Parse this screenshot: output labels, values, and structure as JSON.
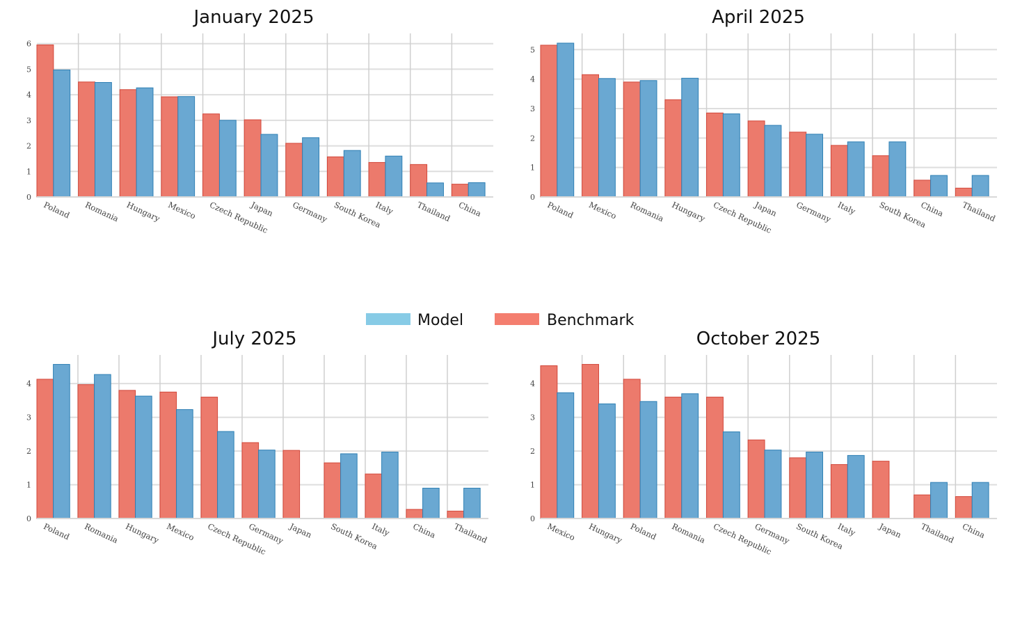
{
  "legend": {
    "items": [
      {
        "label": "Model",
        "color": "#87cbe6"
      },
      {
        "label": "Benchmark",
        "color": "#f47e6f"
      }
    ]
  },
  "colors": {
    "model_fill": "#6aa8d2",
    "model_stroke": "#2e7fb4",
    "bench_fill": "#ec7a6c",
    "bench_stroke": "#d2473a"
  },
  "chart_data": [
    {
      "type": "bar",
      "title": "January 2025",
      "categories": [
        "Poland",
        "Romania",
        "Hungary",
        "Mexico",
        "Czech Republic",
        "Japan",
        "Germany",
        "South Korea",
        "Italy",
        "Thailand",
        "China"
      ],
      "series": [
        {
          "name": "Benchmark",
          "values": [
            5.95,
            4.5,
            4.2,
            3.92,
            3.25,
            3.02,
            2.1,
            1.57,
            1.35,
            1.27,
            0.5
          ]
        },
        {
          "name": "Model",
          "values": [
            4.97,
            4.48,
            4.27,
            3.93,
            3.0,
            2.45,
            2.32,
            1.82,
            1.6,
            0.55,
            0.56
          ]
        }
      ],
      "yticks": [
        0,
        1,
        2,
        3,
        4,
        5,
        6
      ],
      "ylim": [
        0,
        6.4
      ]
    },
    {
      "type": "bar",
      "title": "April 2025",
      "categories": [
        "Poland",
        "Mexico",
        "Romania",
        "Hungary",
        "Czech Republic",
        "Japan",
        "Germany",
        "Italy",
        "South Korea",
        "China",
        "Thailand"
      ],
      "series": [
        {
          "name": "Benchmark",
          "values": [
            5.15,
            4.15,
            3.9,
            3.3,
            2.85,
            2.58,
            2.2,
            1.75,
            1.4,
            0.57,
            0.3
          ]
        },
        {
          "name": "Model",
          "values": [
            5.22,
            4.02,
            3.95,
            4.03,
            2.82,
            2.43,
            2.13,
            1.87,
            1.87,
            0.73,
            0.73
          ]
        }
      ],
      "yticks": [
        0,
        1,
        2,
        3,
        4,
        5
      ],
      "ylim": [
        0,
        5.55
      ]
    },
    {
      "type": "bar",
      "title": "July 2025",
      "categories": [
        "Poland",
        "Romania",
        "Hungary",
        "Mexico",
        "Czech Republic",
        "Germany",
        "Japan",
        "South Korea",
        "Italy",
        "China",
        "Thailand"
      ],
      "series": [
        {
          "name": "Benchmark",
          "values": [
            4.13,
            3.97,
            3.8,
            3.75,
            3.6,
            2.25,
            2.02,
            1.65,
            1.32,
            0.27,
            0.22
          ]
        },
        {
          "name": "Model",
          "values": [
            4.57,
            4.27,
            3.63,
            3.23,
            2.58,
            2.03,
            0,
            1.92,
            1.97,
            0.9,
            0.9
          ]
        }
      ],
      "yticks": [
        0,
        1,
        2,
        3,
        4
      ],
      "ylim": [
        0,
        4.85
      ]
    },
    {
      "type": "bar",
      "title": "October 2025",
      "categories": [
        "Mexico",
        "Hungary",
        "Poland",
        "Romania",
        "Czech Republic",
        "Germany",
        "South Korea",
        "Italy",
        "Japan",
        "Thailand",
        "China"
      ],
      "series": [
        {
          "name": "Benchmark",
          "values": [
            4.53,
            4.57,
            4.13,
            3.6,
            3.6,
            2.33,
            1.8,
            1.6,
            1.7,
            0.7,
            0.65
          ]
        },
        {
          "name": "Model",
          "values": [
            3.73,
            3.4,
            3.47,
            3.7,
            2.57,
            2.03,
            1.97,
            1.87,
            0,
            1.07,
            1.07
          ]
        }
      ],
      "yticks": [
        0,
        1,
        2,
        3,
        4
      ],
      "ylim": [
        0,
        4.85
      ]
    }
  ]
}
